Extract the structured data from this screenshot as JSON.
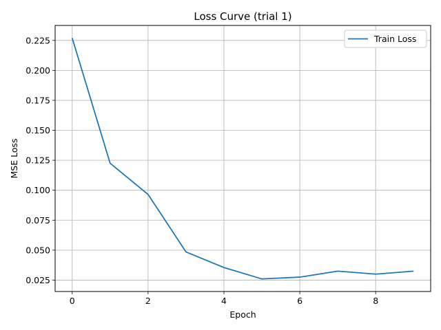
{
  "chart_data": {
    "type": "line",
    "title": "Loss Curve (trial 1)",
    "xlabel": "Epoch",
    "ylabel": "MSE Loss",
    "xlim": [
      -0.45,
      9.45
    ],
    "ylim": [
      0.0155,
      0.2375
    ],
    "xticks": [
      0,
      2,
      4,
      6,
      8
    ],
    "yticks": [
      0.025,
      0.05,
      0.075,
      0.1,
      0.125,
      0.15,
      0.175,
      0.2,
      0.225
    ],
    "ytick_labels": [
      "0.025",
      "0.050",
      "0.075",
      "0.100",
      "0.125",
      "0.150",
      "0.175",
      "0.200",
      "0.225"
    ],
    "grid": true,
    "legend_position": "top-right",
    "series": [
      {
        "name": "Train Loss",
        "color": "#1f77b4",
        "x": [
          0,
          1,
          2,
          3,
          4,
          5,
          6,
          7,
          8,
          9
        ],
        "y": [
          0.227,
          0.1225,
          0.0965,
          0.0485,
          0.0355,
          0.026,
          0.0275,
          0.0325,
          0.03,
          0.0325
        ]
      }
    ]
  }
}
